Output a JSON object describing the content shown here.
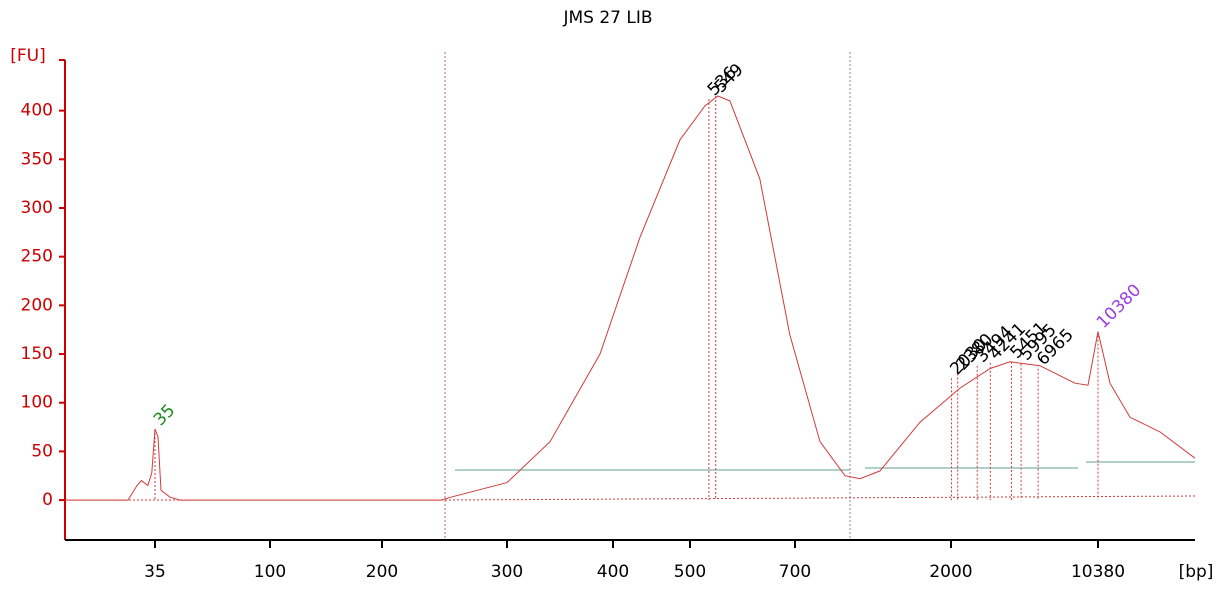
{
  "chart_data": {
    "type": "line",
    "title": "JMS 27 LIB",
    "ylabel": "[FU]",
    "xlabel": "[bp]",
    "color": "#d03a3a",
    "axis_color": "#cc0000",
    "x": [
      15,
      29,
      31,
      32,
      33.4,
      34.3,
      35,
      36.7,
      38.4,
      43.5,
      49,
      247,
      255,
      270,
      300,
      340.6,
      387.7,
      435,
      487,
      528.6,
      553,
      576,
      633,
      690,
      908,
      1117,
      1242,
      1408,
      1742,
      2513,
      4223,
      5363,
      7073,
      9068,
      9810,
      10380,
      11570,
      13554,
      16530,
      20000
    ],
    "values": [
      0,
      0,
      15,
      20,
      15,
      28,
      73,
      65,
      10,
      3,
      0,
      0,
      3,
      8,
      18,
      60,
      150,
      270,
      370,
      405,
      415,
      410,
      330,
      170,
      60,
      25,
      22,
      30,
      80,
      115,
      135,
      142,
      138,
      120,
      118,
      173,
      120,
      85,
      70,
      43
    ],
    "peaks": [
      {
        "x": 35,
        "y": 73,
        "color": "#1a8a1a"
      },
      {
        "x": 536,
        "y": 412,
        "color": "#000000"
      },
      {
        "x": 549,
        "y": 415,
        "color": "#000000"
      },
      {
        "x": 2030,
        "y": 125,
        "color": "#000000"
      },
      {
        "x": 2380,
        "y": 130,
        "color": "#000000"
      },
      {
        "x": 3494,
        "y": 138,
        "color": "#000000"
      },
      {
        "x": 4241,
        "y": 141,
        "color": "#000000"
      },
      {
        "x": 5451,
        "y": 142,
        "color": "#000000"
      },
      {
        "x": 5995,
        "y": 140,
        "color": "#000000"
      },
      {
        "x": 6965,
        "y": 135,
        "color": "#000000"
      },
      {
        "x": 10380,
        "y": 173,
        "color": "#9b3fe0"
      }
    ],
    "xlim": [
      15,
      20000
    ],
    "xticks": [
      35,
      100,
      200,
      300,
      400,
      500,
      700,
      2000,
      10380
    ],
    "ylim": [
      -41,
      452
    ],
    "yticks": [
      0,
      50,
      100,
      150,
      200,
      250,
      300,
      350,
      400
    ]
  }
}
